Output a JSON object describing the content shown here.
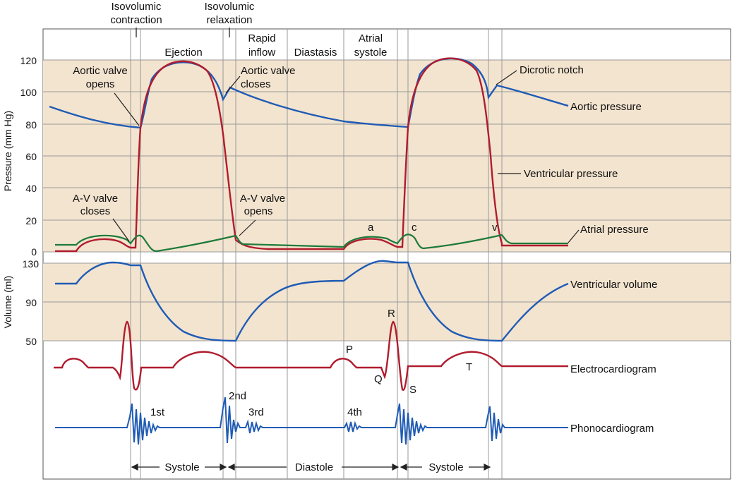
{
  "phases": {
    "isovolumic_contraction": [
      "Isovolumic",
      "contraction"
    ],
    "isovolumic_relaxation": [
      "Isovolumic",
      "relaxation"
    ],
    "ejection": "Ejection",
    "rapid_inflow": [
      "Rapid",
      "inflow"
    ],
    "diastasis": "Diastasis",
    "atrial_systole": [
      "Atrial",
      "systole"
    ]
  },
  "pressure_axis": {
    "label": "Pressure (mm Hg)",
    "ticks": [
      0,
      20,
      40,
      60,
      80,
      100,
      120
    ],
    "range": [
      0,
      120
    ]
  },
  "volume_axis": {
    "label": "Volume (ml)",
    "ticks": [
      50,
      90,
      130
    ],
    "range": [
      50,
      130
    ]
  },
  "annotations": {
    "aortic_valve_opens": [
      "Aortic valve",
      "opens"
    ],
    "aortic_valve_closes": [
      "Aortic valve",
      "closes"
    ],
    "av_valve_closes": [
      "A-V valve",
      "closes"
    ],
    "av_valve_opens": [
      "A-V valve",
      "opens"
    ],
    "dicrotic_notch": "Dicrotic notch"
  },
  "curve_labels": {
    "aortic_pressure": "Aortic pressure",
    "ventricular_pressure": "Ventricular pressure",
    "atrial_pressure": "Atrial pressure",
    "ventricular_volume": "Ventricular volume",
    "electrocardiogram": "Electrocardiogram",
    "phonocardiogram": "Phonocardiogram"
  },
  "atrial_waves": {
    "a": "a",
    "c": "c",
    "v": "v"
  },
  "ecg_waves": {
    "p": "P",
    "q": "Q",
    "r": "R",
    "s": "S",
    "t": "T"
  },
  "heart_sounds": {
    "first": "1st",
    "second": "2nd",
    "third": "3rd",
    "fourth": "4th"
  },
  "cycle": {
    "systole_1": "Systole",
    "diastole": "Diastole",
    "systole_2": "Systole"
  },
  "colors": {
    "band": "#f3e4cf",
    "aortic": "#1f5bb5",
    "ventricular": "#b01c2e",
    "atrial": "#1d7a3a",
    "volume": "#1f5bb5",
    "ecg": "#b01c2e",
    "phono": "#1f5bb5",
    "grid": "#9a9a9a"
  }
}
